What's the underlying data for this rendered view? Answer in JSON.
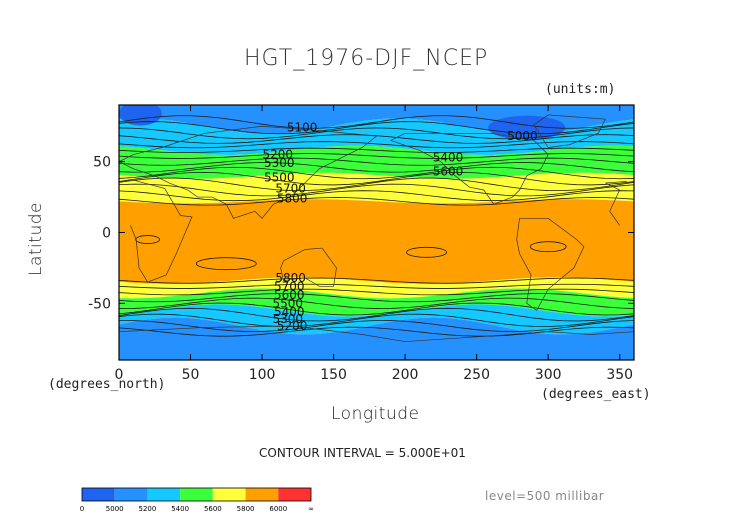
{
  "chart_data": {
    "type": "heatmap",
    "title": "HGT_1976-DJF_NCEP",
    "units": "(units:m)",
    "xlabel": "Longitude",
    "ylabel": "Latitude",
    "x_unit_label": "(degrees_east)",
    "y_unit_label": "(degrees_north)",
    "xlim": [
      0,
      360
    ],
    "ylim": [
      -90,
      90
    ],
    "x_ticks": [
      0,
      50,
      100,
      150,
      200,
      250,
      300,
      350
    ],
    "y_ticks": [
      50,
      0,
      -50
    ],
    "contour_interval_label": "CONTOUR INTERVAL = 5.000E+01",
    "level_label": "level=500 millibar",
    "colorbar": {
      "bins": [
        {
          "lo": "0",
          "color": "#1e64f0"
        },
        {
          "lo": "5000",
          "color": "#2591ff"
        },
        {
          "lo": "5200",
          "color": "#15c8ff"
        },
        {
          "lo": "5400",
          "color": "#3cff3c"
        },
        {
          "lo": "5600",
          "color": "#ffff3c"
        },
        {
          "lo": "5800",
          "color": "#ffa000"
        },
        {
          "lo": "6000",
          "color": "#ff3232"
        }
      ],
      "labels": [
        "0",
        "5000",
        "5200",
        "5400",
        "5600",
        "5800",
        "6000",
        "∞"
      ]
    },
    "contour_labels": [
      {
        "text": "5100",
        "lon": 128,
        "lat": 74
      },
      {
        "text": "5000",
        "lon": 282,
        "lat": 68
      },
      {
        "text": "5200",
        "lon": 111,
        "lat": 55
      },
      {
        "text": "5300",
        "lon": 112,
        "lat": 49
      },
      {
        "text": "5500",
        "lon": 112,
        "lat": 39
      },
      {
        "text": "5700",
        "lon": 120,
        "lat": 31
      },
      {
        "text": "5800",
        "lon": 121,
        "lat": 24
      },
      {
        "text": "5400",
        "lon": 230,
        "lat": 53
      },
      {
        "text": "5600",
        "lon": 230,
        "lat": 43
      },
      {
        "text": "5800",
        "lon": 120,
        "lat": -32
      },
      {
        "text": "5700",
        "lon": 119,
        "lat": -38
      },
      {
        "text": "5600",
        "lon": 119,
        "lat": -44
      },
      {
        "text": "5500",
        "lon": 118,
        "lat": -50
      },
      {
        "text": "5400",
        "lon": 119,
        "lat": -56
      },
      {
        "text": "5300",
        "lon": 118,
        "lat": -61
      },
      {
        "text": "5200",
        "lon": 121,
        "lat": -66
      }
    ],
    "bands": [
      {
        "from_lat": 90,
        "to_lat": 75,
        "color": "#2591ff"
      },
      {
        "from_lat": 75,
        "to_lat": 58,
        "color": "#15c8ff"
      },
      {
        "from_lat": 58,
        "to_lat": 40,
        "color": "#3cff3c"
      },
      {
        "from_lat": 40,
        "to_lat": 22,
        "color": "#ffff3c"
      },
      {
        "from_lat": 22,
        "to_lat": -34,
        "color": "#ffa000"
      },
      {
        "from_lat": -34,
        "to_lat": -43,
        "color": "#ffff3c"
      },
      {
        "from_lat": -43,
        "to_lat": -55,
        "color": "#3cff3c"
      },
      {
        "from_lat": -55,
        "to_lat": -66,
        "color": "#15c8ff"
      },
      {
        "from_lat": -66,
        "to_lat": -90,
        "color": "#2591ff"
      }
    ],
    "polar_lows": [
      {
        "lon_from": 258,
        "lon_to": 312,
        "lat_center": 74,
        "color": "#1e64f0"
      },
      {
        "lon_from": 0,
        "lon_to": 30,
        "lat_center": 84,
        "color": "#1e64f0"
      }
    ]
  }
}
